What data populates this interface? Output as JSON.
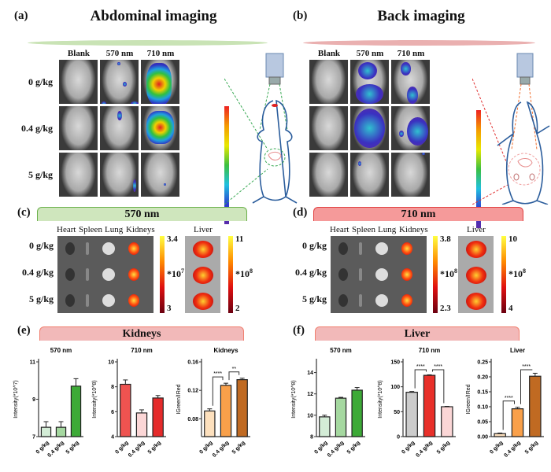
{
  "panel_a": {
    "label": "(a)",
    "title": "Abdominal imaging",
    "columns": [
      "Blank",
      "570 nm",
      "710 nm"
    ],
    "rows": [
      "0 g/kg",
      "0.4 g/kg",
      "5 g/kg"
    ],
    "accent": "#b9dca0"
  },
  "panel_b": {
    "label": "(b)",
    "title": "Back imaging",
    "columns": [
      "Blank",
      "570 nm",
      "710 nm"
    ],
    "accent": "#e9a3a3"
  },
  "panel_c": {
    "label": "(c)",
    "header": "570 nm",
    "header_color": "#cfe6bd",
    "organs": [
      "Heart",
      "Spleen",
      "Lung",
      "Kidneys"
    ],
    "liver": "Liver",
    "rows": [
      "0 g/kg",
      "0.4 g/kg",
      "5 g/kg"
    ],
    "scale1": {
      "max": "3.4",
      "exp": "*10",
      "exp_pow": "7",
      "min": "3"
    },
    "scale2": {
      "max": "11",
      "exp": "*10",
      "exp_pow": "8",
      "min": "2"
    }
  },
  "panel_d": {
    "label": "(d)",
    "header": "710 nm",
    "header_color": "#f59a9a",
    "organs": [
      "Heart",
      "Spleen",
      "Lung",
      "Kidneys"
    ],
    "liver": "Liver",
    "rows": [
      "0 g/kg",
      "0.4 g/kg",
      "5 g/kg"
    ],
    "scale1": {
      "max": "3.8",
      "exp": "*10",
      "exp_pow": "8",
      "min": "2.3"
    },
    "scale2": {
      "max": "10",
      "exp": "*10",
      "exp_pow": "8",
      "min": "4"
    }
  },
  "panel_e": {
    "label": "(e)",
    "header": "Kidneys",
    "header_color": "#f2b9b9"
  },
  "panel_f": {
    "label": "(f)",
    "header": "Liver",
    "header_color": "#f2b9b9"
  },
  "chart_data": [
    {
      "type": "bar",
      "title": "570 nm",
      "ylabel": "Intensity(*10^7)",
      "categories": [
        "0 g/kg",
        "0.4 g/kg",
        "5 g/kg"
      ],
      "values": [
        7.5,
        7.5,
        9.7
      ],
      "errors": [
        0.3,
        0.3,
        0.4
      ],
      "ylim": [
        7,
        11
      ],
      "yticks": [
        "7",
        "9",
        "11"
      ],
      "colors": [
        "#d3ecd6",
        "#a5d8a0",
        "#3daa37"
      ],
      "significance": []
    },
    {
      "type": "bar",
      "title": "710 nm",
      "ylabel": "Intensity(*10^8)",
      "categories": [
        "0 g/kg",
        "0.4 g/kg",
        "5 g/kg"
      ],
      "values": [
        8.2,
        5.9,
        7.1
      ],
      "errors": [
        0.35,
        0.25,
        0.2
      ],
      "ylim": [
        4,
        10
      ],
      "yticks": [
        "4",
        "6",
        "8",
        "10"
      ],
      "colors": [
        "#ef5350",
        "#fbd6d6",
        "#e52b2b"
      ],
      "significance": []
    },
    {
      "type": "bar",
      "title": "Kidneys",
      "ylabel": "IGreen/IRed",
      "categories": [
        "0 g/kg",
        "0.4 g/kg",
        "5 g/kg"
      ],
      "values": [
        0.091,
        0.127,
        0.135
      ],
      "errors": [
        0.003,
        0.003,
        0.002
      ],
      "ylim": [
        0.055,
        0.16
      ],
      "yticks": [
        "0.08",
        "0.12",
        "0.16"
      ],
      "colors": [
        "#fde0bd",
        "#f9a04a",
        "#c06a22"
      ],
      "significance": [
        {
          "from": 0,
          "to": 1,
          "label": "****"
        },
        {
          "from": 1,
          "to": 2,
          "label": "**"
        }
      ]
    },
    {
      "type": "bar",
      "title": "570 nm",
      "ylabel": "Intensity(*10^8)",
      "categories": [
        "0 g/kg",
        "0.4 g/kg",
        "5 g/kg"
      ],
      "values": [
        9.85,
        11.6,
        12.35
      ],
      "errors": [
        0.15,
        0.08,
        0.25
      ],
      "ylim": [
        8,
        15
      ],
      "yticks": [
        "8",
        "10",
        "12",
        "14"
      ],
      "colors": [
        "#d3ecd6",
        "#a5d8a0",
        "#3daa37"
      ],
      "significance": []
    },
    {
      "type": "bar",
      "title": "710 nm",
      "ylabel": "Intensity(*10^8)",
      "categories": [
        "0 g/kg",
        "0.4 g/kg",
        "5 g/kg"
      ],
      "values": [
        89,
        123,
        60
      ],
      "errors": [
        1.5,
        1,
        0.8
      ],
      "ylim": [
        0,
        150
      ],
      "yticks": [
        "0",
        "50",
        "100",
        "150"
      ],
      "colors": [
        "#cccccc",
        "#e8302a",
        "#fbd6d6"
      ],
      "significance": [
        {
          "from": 0,
          "to": 1,
          "label": "****"
        },
        {
          "from": 1,
          "to": 2,
          "label": "****"
        }
      ]
    },
    {
      "type": "bar",
      "title": "Liver",
      "ylabel": "IGreen/IRed",
      "categories": [
        "0 g/kg",
        "0.4 g/kg",
        "5 g/kg"
      ],
      "values": [
        0.01,
        0.093,
        0.202
      ],
      "errors": [
        0.002,
        0.005,
        0.01
      ],
      "ylim": [
        0,
        0.25
      ],
      "yticks": [
        "0.00",
        "0.05",
        "0.10",
        "0.15",
        "0.20",
        "0.25"
      ],
      "colors": [
        "#fde0bd",
        "#f9a04a",
        "#c06a22"
      ],
      "significance": [
        {
          "from": 0,
          "to": 1,
          "label": "****"
        },
        {
          "from": 1,
          "to": 2,
          "label": "****"
        }
      ]
    }
  ]
}
